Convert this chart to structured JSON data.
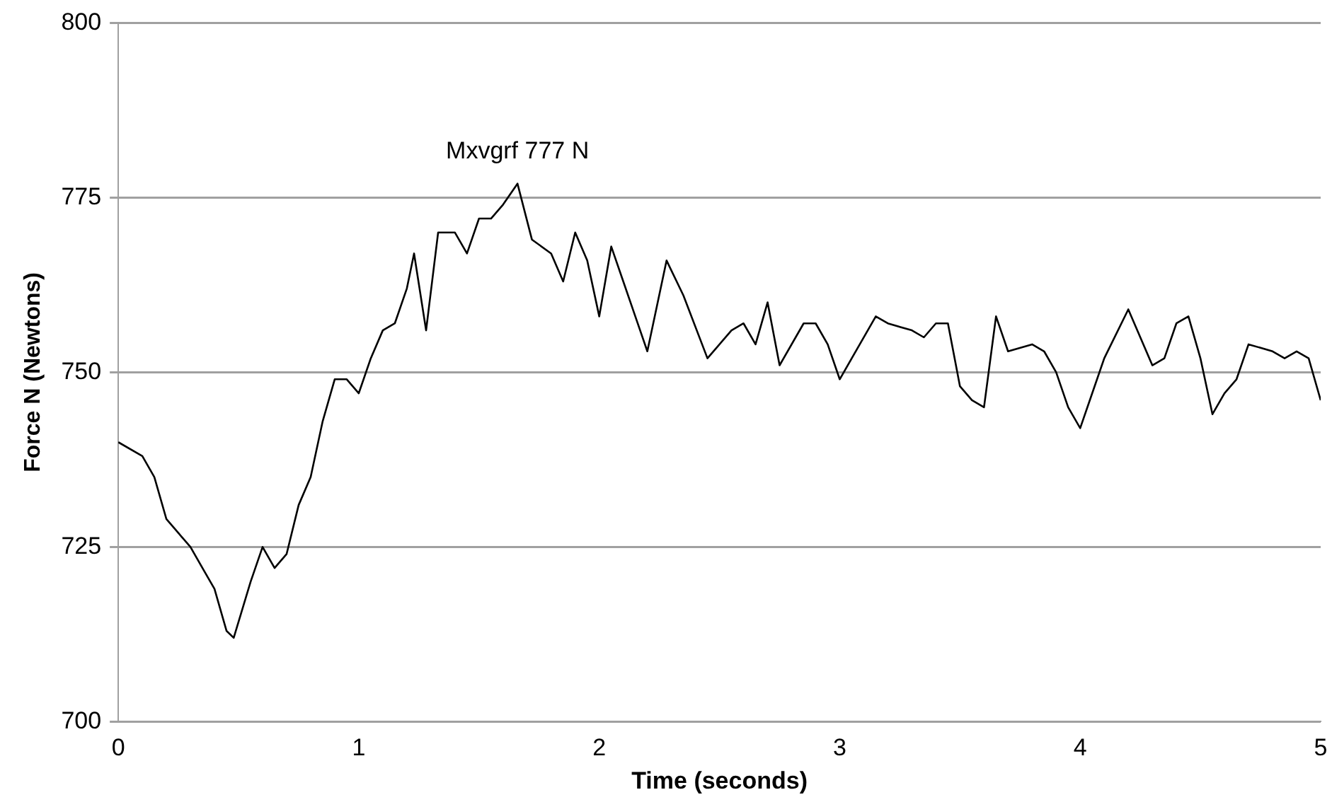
{
  "chart_data": {
    "type": "line",
    "xlabel": "Time (seconds)",
    "ylabel": "Force N (Newtons)",
    "x": [
      0,
      0.1,
      0.15,
      0.2,
      0.25,
      0.3,
      0.35,
      0.4,
      0.45,
      0.48,
      0.55,
      0.6,
      0.65,
      0.7,
      0.75,
      0.8,
      0.85,
      0.9,
      0.95,
      1.0,
      1.05,
      1.1,
      1.15,
      1.2,
      1.23,
      1.28,
      1.33,
      1.4,
      1.45,
      1.5,
      1.55,
      1.6,
      1.66,
      1.72,
      1.8,
      1.85,
      1.9,
      1.95,
      2.0,
      2.05,
      2.1,
      2.15,
      2.2,
      2.28,
      2.35,
      2.45,
      2.55,
      2.6,
      2.65,
      2.7,
      2.75,
      2.85,
      2.9,
      2.95,
      3.0,
      3.05,
      3.15,
      3.2,
      3.3,
      3.35,
      3.4,
      3.45,
      3.5,
      3.55,
      3.6,
      3.65,
      3.7,
      3.8,
      3.85,
      3.9,
      3.95,
      4.0,
      4.05,
      4.1,
      4.2,
      4.25,
      4.3,
      4.35,
      4.4,
      4.45,
      4.5,
      4.55,
      4.6,
      4.65,
      4.7,
      4.8,
      4.85,
      4.9,
      4.95,
      5.0
    ],
    "series": [
      {
        "color": "#000000",
        "values": [
          740,
          738,
          735,
          729,
          727,
          725,
          722,
          719,
          713,
          712,
          720,
          725,
          722,
          724,
          731,
          735,
          743,
          749,
          749,
          747,
          752,
          756,
          757,
          762,
          767,
          756,
          770,
          770,
          767,
          772,
          772,
          774,
          777,
          769,
          767,
          763,
          770,
          766,
          758,
          768,
          763,
          758,
          753,
          766,
          761,
          752,
          756,
          757,
          754,
          760,
          751,
          757,
          757,
          754,
          749,
          752,
          758,
          757,
          756,
          755,
          757,
          757,
          748,
          746,
          745,
          758,
          753,
          754,
          753,
          750,
          745,
          742,
          747,
          752,
          759,
          755,
          751,
          752,
          757,
          758,
          752,
          744,
          747,
          749,
          754,
          753,
          752,
          753,
          752,
          746
        ]
      }
    ],
    "xlim": [
      0,
      5
    ],
    "xticks": [
      0,
      1,
      2,
      3,
      4,
      5
    ],
    "ylim": [
      700,
      800
    ],
    "yticks": [
      700,
      725,
      750,
      775,
      800
    ],
    "grid": "y",
    "legend": false,
    "marker": "none",
    "line_style": "solid",
    "annotations": [
      {
        "text": "Mxvgrf 777 N",
        "x": 1.66,
        "y": 777
      }
    ]
  }
}
